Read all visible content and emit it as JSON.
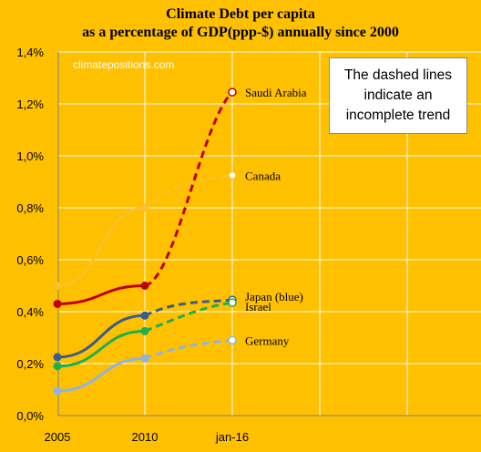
{
  "chart_data": {
    "type": "line",
    "title": [
      "Climate Debt per capita",
      "as a percentage of GDP(ppp-$) annually since 2000"
    ],
    "watermark": "climatepositions.com",
    "note": [
      "The dashed lines",
      "indicate an",
      "incomplete trend"
    ],
    "categories": [
      "2005",
      "2010",
      "jan-16"
    ],
    "ylim": [
      0,
      1.4
    ],
    "y_ticks": [
      "0,0%",
      "0,2%",
      "0,4%",
      "0,6%",
      "0,8%",
      "1,0%",
      "1,2%",
      "1,4%"
    ],
    "grid": true,
    "series": [
      {
        "name": "Saudi Arabia",
        "values": [
          0.43,
          0.5,
          1.245
        ],
        "color": "#C00000",
        "label": "Saudi Arabia"
      },
      {
        "name": "Canada",
        "values": [
          0.5,
          0.8,
          0.925
        ],
        "color": "#F9C22B",
        "label": "Canada"
      },
      {
        "name": "Japan",
        "values": [
          0.225,
          0.385,
          0.445
        ],
        "color": "#3A5E8C",
        "label": "Japan (blue)"
      },
      {
        "name": "Israel",
        "values": [
          0.19,
          0.325,
          0.435
        ],
        "color": "#1DAF50",
        "label": "Israel"
      },
      {
        "name": "Germany",
        "values": [
          0.095,
          0.22,
          0.29
        ],
        "color": "#8EB4E3",
        "label": "Germany"
      }
    ]
  }
}
